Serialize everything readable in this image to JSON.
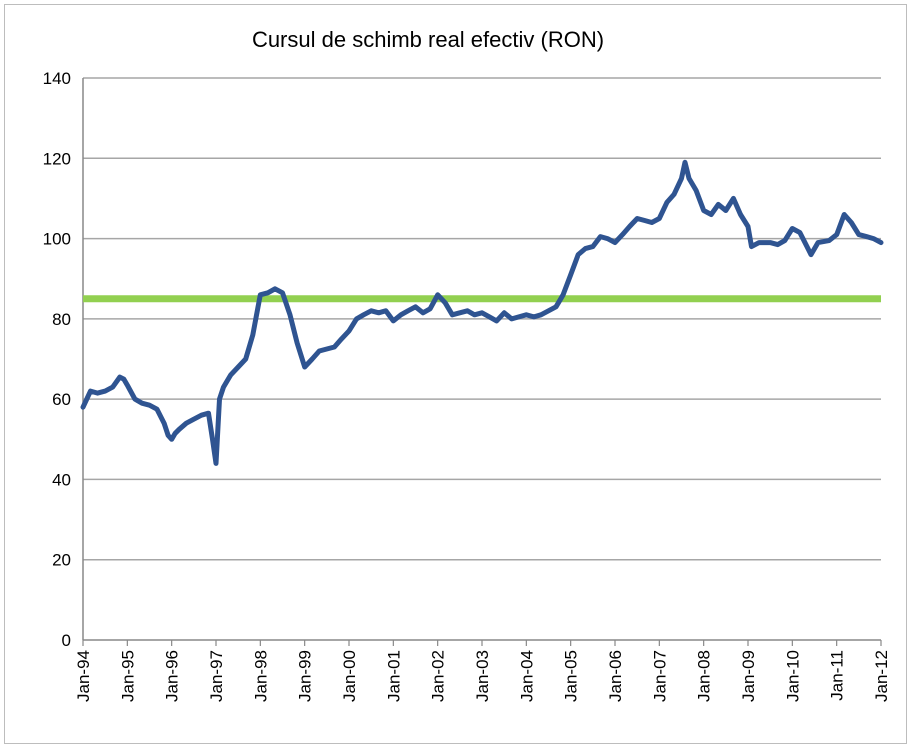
{
  "chart_data": {
    "type": "line",
    "title": "Cursul de schimb real efectiv (RON)",
    "xlabel": "",
    "ylabel": "",
    "ylim": [
      0,
      140
    ],
    "yticks": [
      0,
      20,
      40,
      60,
      80,
      100,
      120,
      140
    ],
    "grid": true,
    "legend": "none",
    "xtick_labels": [
      "Jan-94",
      "Jan-95",
      "Jan-96",
      "Jan-97",
      "Jan-98",
      "Jan-99",
      "Jan-00",
      "Jan-01",
      "Jan-02",
      "Jan-03",
      "Jan-04",
      "Jan-05",
      "Jan-06",
      "Jan-07",
      "Jan-08",
      "Jan-09",
      "Jan-10",
      "Jan-11",
      "Jan-12"
    ],
    "colors": {
      "series": "#2f5491",
      "reference": "#92d050",
      "grid": "#a6a6a6"
    },
    "reference_line": {
      "value": 85
    },
    "series": [
      {
        "points": [
          [
            1994.0,
            58
          ],
          [
            1994.17,
            62
          ],
          [
            1994.33,
            61.5
          ],
          [
            1994.5,
            62
          ],
          [
            1994.67,
            63
          ],
          [
            1994.83,
            65.5
          ],
          [
            1994.92,
            65
          ],
          [
            1995.0,
            63.5
          ],
          [
            1995.17,
            60
          ],
          [
            1995.33,
            59
          ],
          [
            1995.5,
            58.5
          ],
          [
            1995.67,
            57.5
          ],
          [
            1995.83,
            54
          ],
          [
            1995.92,
            51
          ],
          [
            1996.0,
            50
          ],
          [
            1996.08,
            51.5
          ],
          [
            1996.17,
            52.5
          ],
          [
            1996.33,
            54
          ],
          [
            1996.5,
            55
          ],
          [
            1996.67,
            56
          ],
          [
            1996.83,
            56.5
          ],
          [
            1996.92,
            50
          ],
          [
            1997.0,
            44
          ],
          [
            1997.08,
            60
          ],
          [
            1997.17,
            63
          ],
          [
            1997.33,
            66
          ],
          [
            1997.5,
            68
          ],
          [
            1997.67,
            70
          ],
          [
            1997.83,
            76
          ],
          [
            1998.0,
            86
          ],
          [
            1998.17,
            86.5
          ],
          [
            1998.33,
            87.5
          ],
          [
            1998.5,
            86.5
          ],
          [
            1998.67,
            81
          ],
          [
            1998.83,
            74
          ],
          [
            1999.0,
            68
          ],
          [
            1999.17,
            70
          ],
          [
            1999.33,
            72
          ],
          [
            1999.5,
            72.5
          ],
          [
            1999.67,
            73
          ],
          [
            1999.83,
            75
          ],
          [
            2000.0,
            77
          ],
          [
            2000.17,
            80
          ],
          [
            2000.33,
            81
          ],
          [
            2000.5,
            82
          ],
          [
            2000.67,
            81.5
          ],
          [
            2000.83,
            82
          ],
          [
            2001.0,
            79.5
          ],
          [
            2001.17,
            81
          ],
          [
            2001.33,
            82
          ],
          [
            2001.5,
            83
          ],
          [
            2001.67,
            81.5
          ],
          [
            2001.83,
            82.5
          ],
          [
            2002.0,
            86
          ],
          [
            2002.17,
            84
          ],
          [
            2002.33,
            81
          ],
          [
            2002.5,
            81.5
          ],
          [
            2002.67,
            82
          ],
          [
            2002.83,
            81
          ],
          [
            2003.0,
            81.5
          ],
          [
            2003.17,
            80.5
          ],
          [
            2003.33,
            79.5
          ],
          [
            2003.5,
            81.5
          ],
          [
            2003.67,
            80
          ],
          [
            2003.83,
            80.5
          ],
          [
            2004.0,
            81
          ],
          [
            2004.17,
            80.5
          ],
          [
            2004.33,
            81
          ],
          [
            2004.5,
            82
          ],
          [
            2004.67,
            83
          ],
          [
            2004.83,
            86
          ],
          [
            2005.0,
            91
          ],
          [
            2005.17,
            96
          ],
          [
            2005.33,
            97.5
          ],
          [
            2005.5,
            98
          ],
          [
            2005.67,
            100.5
          ],
          [
            2005.83,
            100
          ],
          [
            2006.0,
            99
          ],
          [
            2006.17,
            101
          ],
          [
            2006.33,
            103
          ],
          [
            2006.5,
            105
          ],
          [
            2006.67,
            104.5
          ],
          [
            2006.83,
            104
          ],
          [
            2007.0,
            105
          ],
          [
            2007.17,
            109
          ],
          [
            2007.33,
            111
          ],
          [
            2007.5,
            115
          ],
          [
            2007.58,
            119
          ],
          [
            2007.67,
            115
          ],
          [
            2007.83,
            112
          ],
          [
            2008.0,
            107
          ],
          [
            2008.17,
            106
          ],
          [
            2008.33,
            108.5
          ],
          [
            2008.5,
            107
          ],
          [
            2008.67,
            110
          ],
          [
            2008.83,
            106
          ],
          [
            2009.0,
            103
          ],
          [
            2009.08,
            98
          ],
          [
            2009.25,
            99
          ],
          [
            2009.5,
            99
          ],
          [
            2009.67,
            98.5
          ],
          [
            2009.83,
            99.5
          ],
          [
            2010.0,
            102.5
          ],
          [
            2010.17,
            101.5
          ],
          [
            2010.33,
            98
          ],
          [
            2010.42,
            96
          ],
          [
            2010.58,
            99
          ],
          [
            2010.83,
            99.5
          ],
          [
            2011.0,
            101
          ],
          [
            2011.17,
            106
          ],
          [
            2011.33,
            104
          ],
          [
            2011.5,
            101
          ],
          [
            2011.67,
            100.5
          ],
          [
            2011.83,
            100
          ],
          [
            2012.0,
            99
          ]
        ]
      }
    ]
  }
}
